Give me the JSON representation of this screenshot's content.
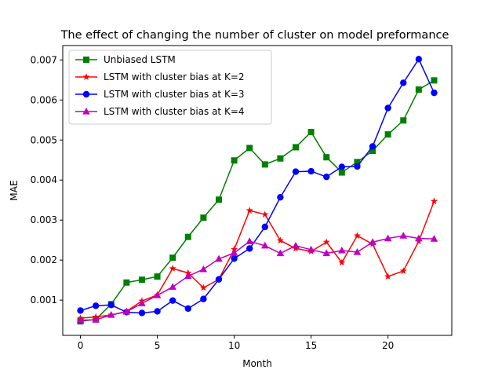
{
  "chart_data": {
    "type": "line",
    "title": "The effect of changing the number of cluster on model preformance",
    "xlabel": "Month",
    "ylabel": "MAE",
    "xlim": [
      -1.15,
      24.15
    ],
    "ylim": [
      0.00012,
      0.00736
    ],
    "xticks": [
      0,
      5,
      10,
      15,
      20
    ],
    "yticks": [
      0.001,
      0.002,
      0.003,
      0.004,
      0.005,
      0.006,
      0.007
    ],
    "ytick_labels": [
      "0.001",
      "0.002",
      "0.003",
      "0.004",
      "0.005",
      "0.006",
      "0.007"
    ],
    "grid": false,
    "legend_position": "upper-left",
    "x": [
      0,
      1,
      2,
      3,
      4,
      5,
      6,
      7,
      8,
      9,
      10,
      11,
      12,
      13,
      14,
      15,
      16,
      17,
      18,
      19,
      20,
      21,
      22,
      23
    ],
    "series": [
      {
        "name": "Unbiased LSTM",
        "color": "#008000",
        "marker": "square",
        "values": [
          0.00047,
          0.00052,
          0.0009,
          0.00144,
          0.00151,
          0.00159,
          0.00206,
          0.00258,
          0.00306,
          0.00351,
          0.00449,
          0.0048,
          0.00439,
          0.00454,
          0.00482,
          0.0052,
          0.00457,
          0.00419,
          0.00445,
          0.00473,
          0.00514,
          0.00549,
          0.00626,
          0.00649
        ]
      },
      {
        "name": "LSTM with cluster bias at K=2",
        "color": "#ff0000",
        "marker": "star",
        "values": [
          0.00055,
          0.00058,
          0.00063,
          0.00072,
          0.00098,
          0.00113,
          0.00179,
          0.00168,
          0.00131,
          0.00152,
          0.00227,
          0.00324,
          0.00314,
          0.00249,
          0.00229,
          0.00222,
          0.00245,
          0.00194,
          0.00261,
          0.0024,
          0.00159,
          0.00173,
          0.00247,
          0.00347
        ]
      },
      {
        "name": "LSTM with cluster bias at K=3",
        "color": "#0000ff",
        "marker": "circle",
        "values": [
          0.00074,
          0.00086,
          0.00088,
          0.0007,
          0.00068,
          0.00072,
          0.00099,
          0.00079,
          0.00103,
          0.00152,
          0.00204,
          0.00229,
          0.00283,
          0.00357,
          0.00421,
          0.00422,
          0.00408,
          0.00433,
          0.00434,
          0.00484,
          0.0058,
          0.00643,
          0.00702,
          0.00618
        ]
      },
      {
        "name": "LSTM with cluster bias at K=4",
        "color": "#bf00bf",
        "marker": "triangle",
        "values": [
          0.0005,
          0.00051,
          0.00063,
          0.00071,
          0.00092,
          0.00112,
          0.00133,
          0.0016,
          0.00177,
          0.00203,
          0.00218,
          0.00247,
          0.00236,
          0.00217,
          0.00236,
          0.00226,
          0.00217,
          0.00224,
          0.0022,
          0.00245,
          0.00254,
          0.00261,
          0.00254,
          0.00253
        ]
      }
    ]
  }
}
